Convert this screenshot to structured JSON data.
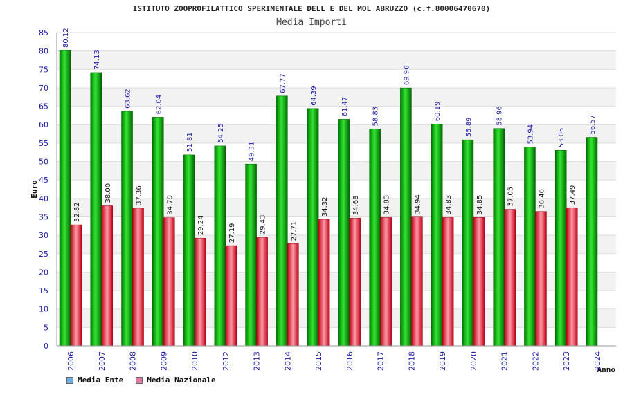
{
  "header": {
    "title": "ISTITUTO ZOOPROFILATTICO SPERIMENTALE DELL E DEL MOL ABRUZZO (c.f.80006470670)",
    "subtitle": "Media Importi"
  },
  "legend": [
    {
      "label": "Media Ente",
      "color": "#6aaee8"
    },
    {
      "label": "Media Nazionale",
      "color": "#e07aa0"
    }
  ],
  "chart_data": {
    "type": "bar",
    "title": "ISTITUTO ZOOPROFILATTICO SPERIMENTALE DELL E DEL MOL ABRUZZO (c.f.80006470670)",
    "subtitle": "Media Importi",
    "xlabel": "Anno",
    "ylabel": "Euro",
    "ylim": [
      0,
      85
    ],
    "ytick_step": 5,
    "grid": true,
    "legend_position": "bottom-left",
    "categories": [
      "2006",
      "2007",
      "2008",
      "2009",
      "2010",
      "2012",
      "2013",
      "2014",
      "2015",
      "2016",
      "2017",
      "2018",
      "2019",
      "2020",
      "2021",
      "2022",
      "2023",
      "2024"
    ],
    "series": [
      {
        "name": "Media Ente",
        "color": "#00b000",
        "values": [
          80.12,
          74.13,
          63.62,
          62.04,
          51.81,
          54.25,
          49.31,
          67.77,
          64.39,
          61.47,
          58.83,
          69.96,
          60.19,
          55.89,
          58.96,
          53.94,
          53.05,
          56.57
        ],
        "labels": [
          "80.12",
          "74.13",
          "63.62",
          "62.04",
          "51.81",
          "54.25",
          "49.31",
          "67.77",
          "64.39",
          "61.47",
          "58.83",
          "69.96",
          "60.19",
          "55.89",
          "58.96",
          "53.94",
          "53.05",
          "56.57"
        ]
      },
      {
        "name": "Media Nazionale",
        "color": "#e00020",
        "values": [
          32.82,
          38.0,
          37.36,
          34.79,
          29.24,
          27.19,
          29.43,
          27.71,
          34.32,
          34.68,
          34.83,
          34.94,
          34.83,
          34.85,
          37.05,
          36.46,
          37.49,
          null
        ],
        "labels": [
          "32.82",
          "38.00",
          "37.36",
          "34.79",
          "29.24",
          "27.19",
          "29.43",
          "27.71",
          "34.32",
          "34.68",
          "34.83",
          "34.94",
          "34.83",
          "34.85",
          "37.05",
          "36.46",
          "37.49",
          ""
        ]
      }
    ]
  }
}
